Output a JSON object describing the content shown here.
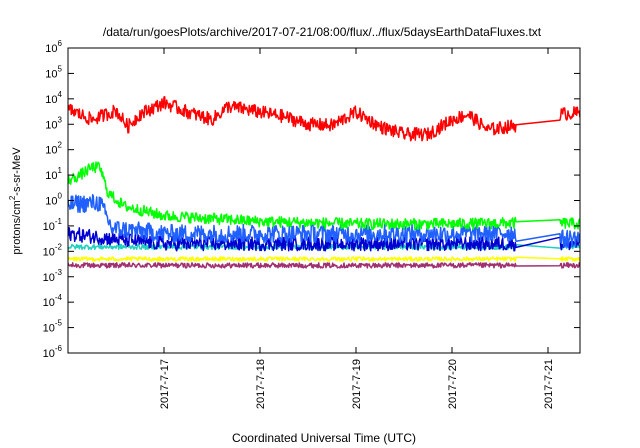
{
  "chart_data": {
    "type": "line",
    "title": "/data/run/goesPlots/archive/2017-07-21/08:00/flux/../flux/5daysEarthDataFluxes.txt",
    "xlabel": "Coordinated Universal Time (UTC)",
    "ylabel": {
      "pre": "protons/cm",
      "sup": "2",
      "post": "-s-sr-MeV"
    },
    "yscale": "log",
    "ylim": [
      1e-06,
      1000000.0
    ],
    "yticks": [
      {
        "base": "10",
        "exp": "-6"
      },
      {
        "base": "10",
        "exp": "-5"
      },
      {
        "base": "10",
        "exp": "-4"
      },
      {
        "base": "10",
        "exp": "-3"
      },
      {
        "base": "10",
        "exp": "-2"
      },
      {
        "base": "10",
        "exp": "-1"
      },
      {
        "base": "10",
        "exp": "0"
      },
      {
        "base": "10",
        "exp": "1"
      },
      {
        "base": "10",
        "exp": "2"
      },
      {
        "base": "10",
        "exp": "3"
      },
      {
        "base": "10",
        "exp": "4"
      },
      {
        "base": "10",
        "exp": "5"
      },
      {
        "base": "10",
        "exp": "6"
      }
    ],
    "xlim": [
      "2017-07-16T00:00",
      "2017-07-21T08:00"
    ],
    "xticks": [
      "2017-7-17",
      "2017-7-18",
      "2017-7-19",
      "2017-7-20",
      "2017-7-21"
    ],
    "xtick_values": [
      "2017-07-17T00:00",
      "2017-07-18T00:00",
      "2017-07-19T00:00",
      "2017-07-20T00:00",
      "2017-07-21T00:00"
    ],
    "grid": false,
    "legend": "none",
    "data_gap": [
      "2017-07-20T16:00",
      "2017-07-21T03:00"
    ],
    "series": [
      {
        "color": "#ff0000",
        "noise": 0.13,
        "points": [
          [
            "2017-07-16T00:00",
            4000
          ],
          [
            "2017-07-16T06:00",
            1500
          ],
          [
            "2017-07-16T12:00",
            3500
          ],
          [
            "2017-07-16T15:00",
            800
          ],
          [
            "2017-07-16T18:00",
            2500
          ],
          [
            "2017-07-17T00:00",
            7000
          ],
          [
            "2017-07-17T06:00",
            3000
          ],
          [
            "2017-07-17T12:00",
            1500
          ],
          [
            "2017-07-17T16:00",
            5000
          ],
          [
            "2017-07-17T20:00",
            4000
          ],
          [
            "2017-07-18T00:00",
            3000
          ],
          [
            "2017-07-18T06:00",
            2000
          ],
          [
            "2017-07-18T12:00",
            1000
          ],
          [
            "2017-07-18T18:00",
            900
          ],
          [
            "2017-07-19T00:00",
            3000
          ],
          [
            "2017-07-19T06:00",
            800
          ],
          [
            "2017-07-19T12:00",
            400
          ],
          [
            "2017-07-19T18:00",
            400
          ],
          [
            "2017-07-20T00:00",
            1500
          ],
          [
            "2017-07-20T04:00",
            2500
          ],
          [
            "2017-07-20T09:00",
            600
          ],
          [
            "2017-07-20T14:00",
            800
          ],
          [
            "2017-07-20T16:00",
            900
          ],
          [
            "2017-07-21T03:00",
            2500
          ],
          [
            "2017-07-21T08:00",
            2800
          ]
        ]
      },
      {
        "color": "#00ff00",
        "noise": 0.11,
        "points": [
          [
            "2017-07-16T00:00",
            6
          ],
          [
            "2017-07-16T03:00",
            10
          ],
          [
            "2017-07-16T06:00",
            20
          ],
          [
            "2017-07-16T08:00",
            20
          ],
          [
            "2017-07-16T10:00",
            2
          ],
          [
            "2017-07-16T14:00",
            0.6
          ],
          [
            "2017-07-17T00:00",
            0.25
          ],
          [
            "2017-07-18T00:00",
            0.15
          ],
          [
            "2017-07-19T00:00",
            0.12
          ],
          [
            "2017-07-20T00:00",
            0.12
          ],
          [
            "2017-07-20T16:00",
            0.13
          ],
          [
            "2017-07-21T03:00",
            0.13
          ],
          [
            "2017-07-21T08:00",
            0.12
          ]
        ]
      },
      {
        "color": "#2060ff",
        "noise": 0.18,
        "points": [
          [
            "2017-07-16T00:00",
            0.7
          ],
          [
            "2017-07-16T06:00",
            0.8
          ],
          [
            "2017-07-16T08:00",
            0.8
          ],
          [
            "2017-07-16T11:00",
            0.08
          ],
          [
            "2017-07-17T00:00",
            0.05
          ],
          [
            "2017-07-18T00:00",
            0.05
          ],
          [
            "2017-07-19T00:00",
            0.05
          ],
          [
            "2017-07-20T00:00",
            0.05
          ],
          [
            "2017-07-20T16:00",
            0.055
          ],
          [
            "2017-07-21T03:00",
            0.03
          ],
          [
            "2017-07-21T08:00",
            0.035
          ]
        ]
      },
      {
        "color": "#0000d0",
        "noise": 0.14,
        "points": [
          [
            "2017-07-16T00:00",
            0.05
          ],
          [
            "2017-07-16T12:00",
            0.03
          ],
          [
            "2017-07-17T00:00",
            0.02
          ],
          [
            "2017-07-18T00:00",
            0.02
          ],
          [
            "2017-07-19T00:00",
            0.02
          ],
          [
            "2017-07-20T00:00",
            0.02
          ],
          [
            "2017-07-20T16:00",
            0.02
          ],
          [
            "2017-07-21T03:00",
            0.02
          ],
          [
            "2017-07-21T08:00",
            0.02
          ]
        ]
      },
      {
        "color": "#20d0c0",
        "noise": 0.05,
        "points": [
          [
            "2017-07-16T00:00",
            0.015
          ],
          [
            "2017-07-17T00:00",
            0.015
          ],
          [
            "2017-07-18T00:00",
            0.015
          ],
          [
            "2017-07-19T00:00",
            0.015
          ],
          [
            "2017-07-20T00:00",
            0.015
          ],
          [
            "2017-07-20T16:00",
            0.015
          ],
          [
            "2017-07-21T03:00",
            0.015
          ],
          [
            "2017-07-21T08:00",
            0.015
          ]
        ]
      },
      {
        "color": "#ffff00",
        "noise": 0.04,
        "points": [
          [
            "2017-07-16T00:00",
            0.005
          ],
          [
            "2017-07-17T00:00",
            0.005
          ],
          [
            "2017-07-18T00:00",
            0.005
          ],
          [
            "2017-07-19T00:00",
            0.005
          ],
          [
            "2017-07-20T00:00",
            0.005
          ],
          [
            "2017-07-20T16:00",
            0.005
          ],
          [
            "2017-07-21T03:00",
            0.005
          ],
          [
            "2017-07-21T08:00",
            0.005
          ]
        ]
      },
      {
        "color": "#a03070",
        "noise": 0.05,
        "points": [
          [
            "2017-07-16T00:00",
            0.0028
          ],
          [
            "2017-07-17T00:00",
            0.0028
          ],
          [
            "2017-07-18T00:00",
            0.0028
          ],
          [
            "2017-07-19T00:00",
            0.0028
          ],
          [
            "2017-07-20T00:00",
            0.0028
          ],
          [
            "2017-07-20T16:00",
            0.0028
          ],
          [
            "2017-07-21T03:00",
            0.0028
          ],
          [
            "2017-07-21T08:00",
            0.0028
          ]
        ]
      }
    ]
  }
}
